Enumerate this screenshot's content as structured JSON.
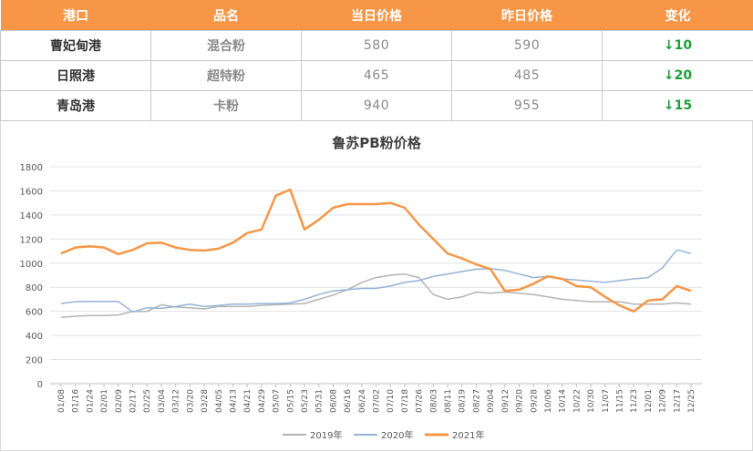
{
  "table": {
    "headers": [
      "港口",
      "品名",
      "当日价格",
      "昨日价格",
      "变化"
    ],
    "rows": [
      {
        "port": "曹妃甸港",
        "product": "混合粉",
        "today": "580",
        "yesterday": "590",
        "change": "↓10"
      },
      {
        "port": "日照港",
        "product": "超特粉",
        "today": "465",
        "yesterday": "485",
        "change": "↓20"
      },
      {
        "port": "青岛港",
        "product": "卡粉",
        "today": "940",
        "yesterday": "955",
        "change": "↓15"
      }
    ]
  },
  "colors": {
    "header_bg": "#f79646",
    "down": "#1e9e3a",
    "s2019": "#b4b4b4",
    "s2020": "#95b3d7",
    "s2021": "#f79646"
  },
  "chart_data": {
    "type": "line",
    "title": "鲁苏PB粉价格",
    "ylim": [
      0,
      1800
    ],
    "yticks": [
      "0",
      "200",
      "400",
      "600",
      "800",
      "1000",
      "1200",
      "1400",
      "1600",
      "1800"
    ],
    "x_labels": [
      "01/08",
      "01/16",
      "01/24",
      "02/01",
      "02/09",
      "02/17",
      "02/25",
      "03/04",
      "03/12",
      "03/20",
      "03/28",
      "04/05",
      "04/13",
      "04/21",
      "04/29",
      "05/07",
      "05/15",
      "05/23",
      "05/31",
      "06/08",
      "06/16",
      "06/24",
      "07/02",
      "07/10",
      "07/18",
      "07/26",
      "08/03",
      "08/11",
      "08/19",
      "08/27",
      "09/04",
      "09/12",
      "09/20",
      "09/28",
      "10/06",
      "10/14",
      "10/22",
      "10/30",
      "11/07",
      "11/15",
      "11/23",
      "12/01",
      "12/09",
      "12/17",
      "12/25"
    ],
    "legend_position": "bottom",
    "series": [
      {
        "name": "2019年",
        "color": "#b4b4b4",
        "width": 1.5,
        "values": [
          550,
          560,
          565,
          565,
          570,
          600,
          600,
          655,
          635,
          630,
          620,
          640,
          640,
          640,
          650,
          655,
          660,
          665,
          700,
          735,
          780,
          840,
          880,
          900,
          910,
          880,
          740,
          700,
          720,
          760,
          750,
          760,
          750,
          740,
          720,
          700,
          690,
          680,
          680,
          680,
          660,
          660,
          660,
          670,
          660
        ]
      },
      {
        "name": "2020年",
        "color": "#95b3d7",
        "width": 1.5,
        "values": [
          665,
          680,
          682,
          682,
          682,
          595,
          630,
          625,
          640,
          660,
          640,
          648,
          660,
          660,
          665,
          665,
          670,
          700,
          740,
          770,
          780,
          790,
          790,
          810,
          840,
          855,
          890,
          910,
          930,
          950,
          955,
          940,
          910,
          880,
          890,
          870,
          860,
          850,
          840,
          855,
          870,
          880,
          960,
          1110,
          1080
        ]
      },
      {
        "name": "2021年",
        "color": "#f79646",
        "width": 2.5,
        "values": [
          1080,
          1130,
          1140,
          1130,
          1075,
          1110,
          1165,
          1170,
          1130,
          1110,
          1105,
          1120,
          1170,
          1250,
          1280,
          1560,
          1610,
          1280,
          1360,
          1460,
          1490,
          1490,
          1490,
          1500,
          1460,
          1320,
          1200,
          1080,
          1040,
          990,
          950,
          770,
          780,
          830,
          890,
          870,
          810,
          800,
          720,
          650,
          600,
          690,
          700,
          810,
          770
        ]
      }
    ]
  }
}
